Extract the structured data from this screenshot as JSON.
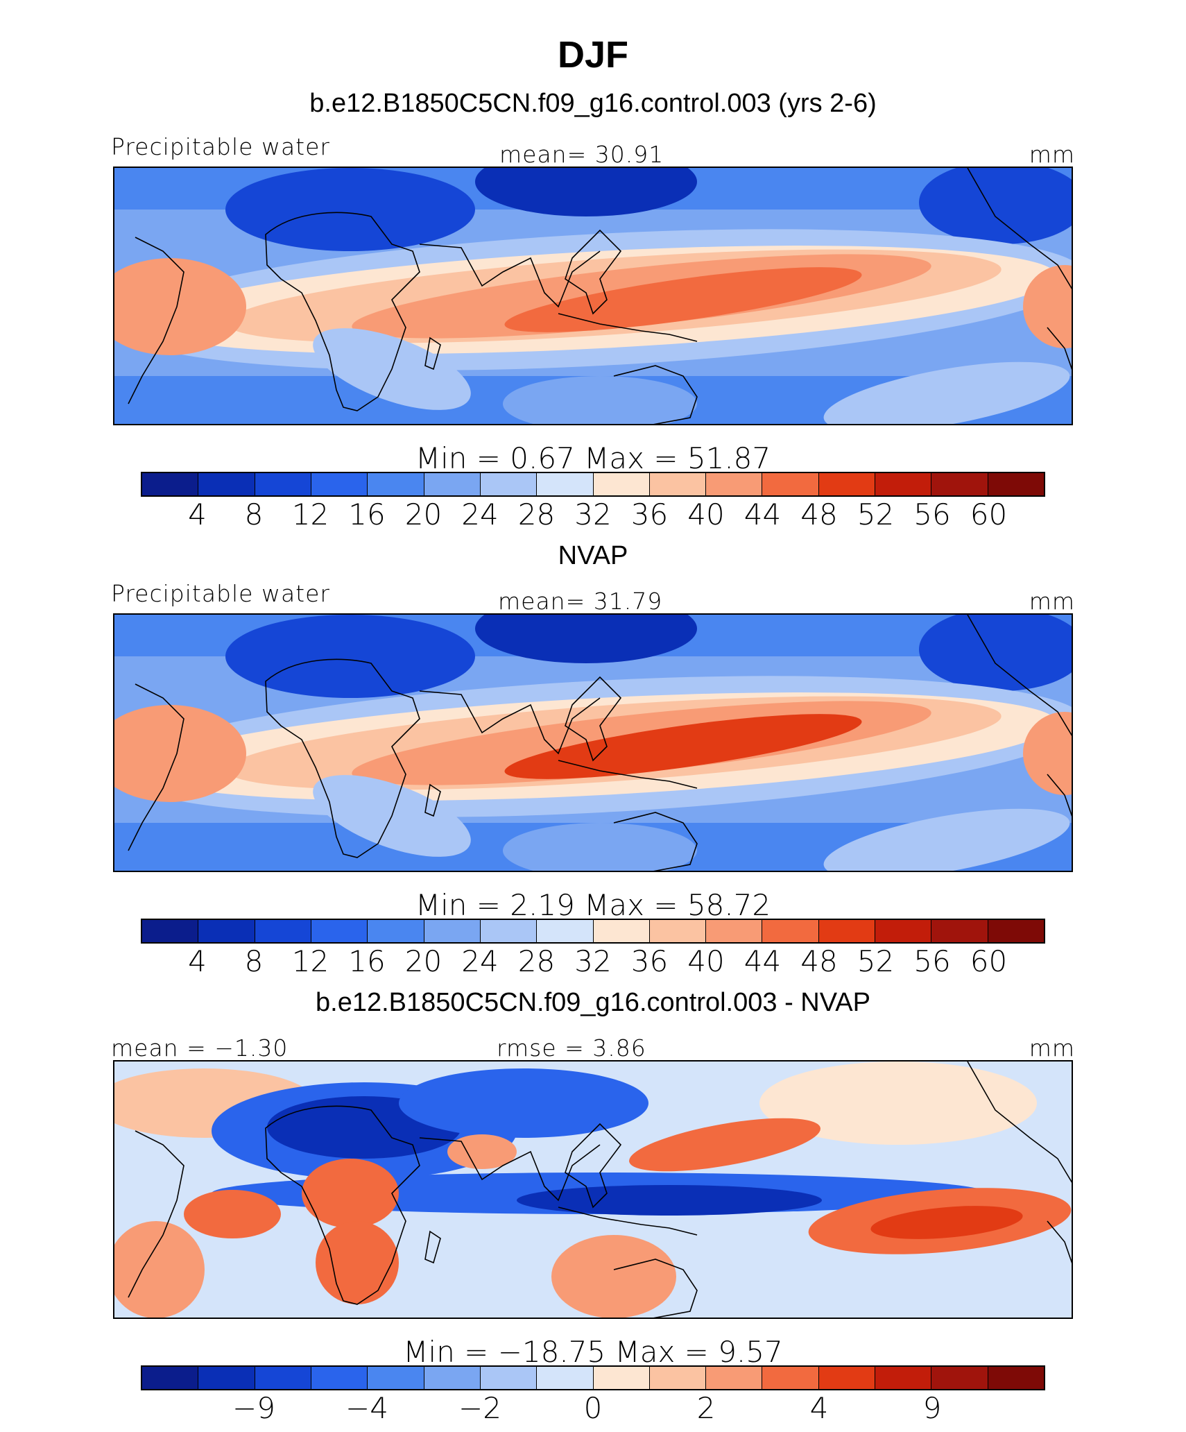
{
  "title": "DJF",
  "panels": [
    {
      "subtitle": "b.e12.B1850C5CN.f09_g16.control.003 (yrs 2-6)",
      "left_label": "Precipitable water",
      "center_label": "mean=   30.91",
      "units": "mm",
      "minmax": "Min  =      0.67  Max  =    51.87",
      "ticks": [
        "4",
        "8",
        "12",
        "16",
        "20",
        "24",
        "28",
        "32",
        "36",
        "40",
        "44",
        "48",
        "52",
        "56",
        "60"
      ],
      "palette": "full"
    },
    {
      "subtitle": "NVAP",
      "left_label": "Precipitable water",
      "center_label": "mean=   31.79",
      "units": "mm",
      "minmax": "Min  =      2.19  Max  =    58.72",
      "ticks": [
        "4",
        "8",
        "12",
        "16",
        "20",
        "24",
        "28",
        "32",
        "36",
        "40",
        "44",
        "48",
        "52",
        "56",
        "60"
      ],
      "palette": "full"
    },
    {
      "subtitle": "b.e12.B1850C5CN.f09_g16.control.003 - NVAP",
      "left_label": "mean  =   −1.30",
      "center_label": "rmse  =      3.86",
      "units": "mm",
      "minmax": "Min  =  −18.75  Max  =     9.57",
      "ticks": [
        "−9",
        "−4",
        "−2",
        "0",
        "2",
        "4",
        "9"
      ],
      "tick_slots": [
        1,
        3,
        5,
        7,
        9,
        11,
        13
      ],
      "palette": "diff"
    }
  ],
  "colors": [
    "#0b1d8c",
    "#0a2fb6",
    "#1546d6",
    "#2a64ec",
    "#4a86f0",
    "#7aa6f2",
    "#aac6f6",
    "#d4e4fa",
    "#fde6d2",
    "#fbc3a2",
    "#f89b75",
    "#f26a3f",
    "#e23b14",
    "#c21d0a",
    "#a0140c",
    "#7e0a06"
  ]
}
